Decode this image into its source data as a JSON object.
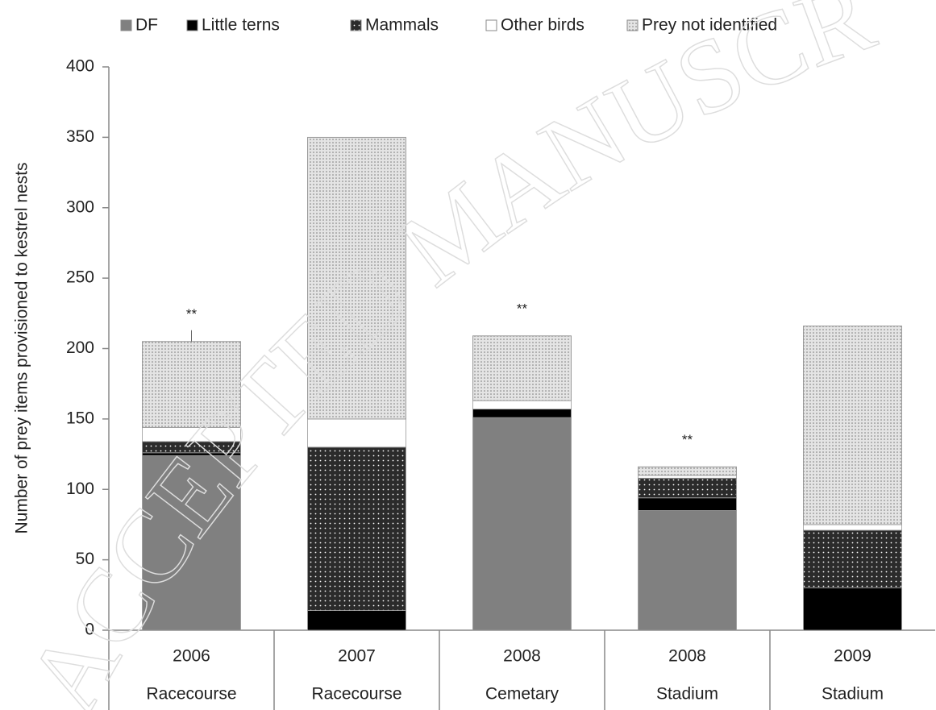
{
  "chart_data": {
    "type": "stacked_bar",
    "y_label": "Number of prey items provisioned to kestrel nests",
    "categories": [
      "2006",
      "2007",
      "2008",
      "2008",
      "2009"
    ],
    "sites": [
      "Racecourse",
      "Racecourse",
      "Cemetary",
      "Stadium",
      "Stadium"
    ],
    "annotations": [
      "**",
      null,
      "**",
      "**",
      null
    ],
    "watermark": "ACCEPTED MANUSCRIPT",
    "series": [
      {
        "name": "DF",
        "color": "#808080",
        "values": [
          124,
          0,
          151,
          85,
          0
        ]
      },
      {
        "name": "Little terns",
        "color": "#000000",
        "values": [
          2,
          14,
          6,
          9,
          30
        ]
      },
      {
        "name": "Mammals",
        "color": "#2b2b2b",
        "pattern": "dots",
        "values": [
          8,
          116,
          0,
          14,
          41
        ]
      },
      {
        "name": "Other birds",
        "color": "#ffffff",
        "values": [
          10,
          20,
          6,
          2,
          4
        ]
      },
      {
        "name": "Prey not identified",
        "color": "#e4e4e4",
        "pattern": "dots",
        "values": [
          61,
          200,
          46,
          6,
          141
        ]
      }
    ],
    "ylim": [
      0,
      400
    ],
    "yticks": [
      0,
      50,
      100,
      150,
      200,
      250,
      300,
      350,
      400
    ]
  }
}
